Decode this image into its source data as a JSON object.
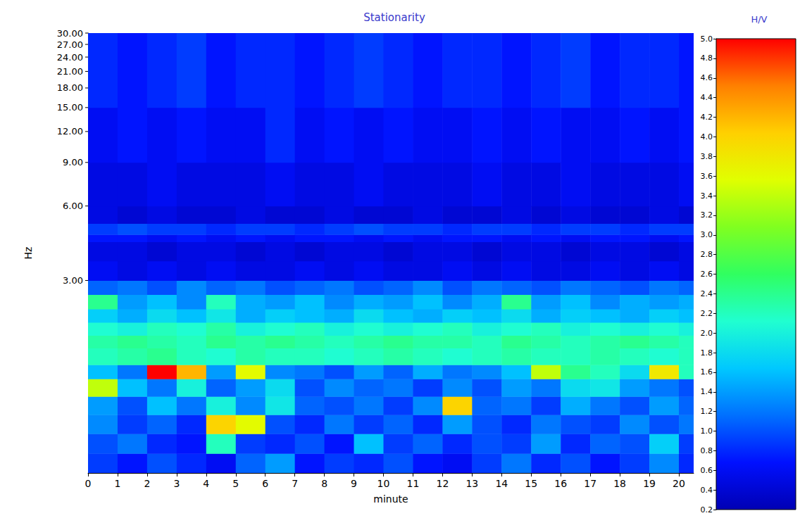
{
  "chart_data": {
    "type": "heatmap",
    "title": "Stationarity",
    "x_label": "minute",
    "y_label": "Hz",
    "log": "y",
    "xlim": [
      0,
      20.5
    ],
    "xticks": [
      0,
      1,
      2,
      3,
      4,
      5,
      6,
      7,
      8,
      9,
      10,
      11,
      12,
      13,
      14,
      15,
      16,
      17,
      18,
      19,
      20
    ],
    "ylim": [
      0.5,
      30
    ],
    "yticks": [
      {
        "value": 3,
        "label": "3.00"
      },
      {
        "value": 6,
        "label": "6.00"
      },
      {
        "value": 9,
        "label": "9.00"
      },
      {
        "value": 12,
        "label": "12.00"
      },
      {
        "value": 15,
        "label": "15.00"
      },
      {
        "value": 18,
        "label": "18.00"
      },
      {
        "value": 21,
        "label": "21.00"
      },
      {
        "value": 24,
        "label": "24.00"
      },
      {
        "value": 27,
        "label": "27.00"
      },
      {
        "value": 30,
        "label": "30.00"
      }
    ],
    "cells": {
      "x_edges": [
        0,
        1,
        2,
        3,
        4,
        5,
        6,
        7,
        8,
        9,
        10,
        11,
        12,
        13,
        14,
        15,
        16,
        17,
        18,
        19,
        20,
        20.5
      ],
      "y_edges": [
        0.5,
        0.6,
        0.72,
        0.86,
        1.02,
        1.2,
        1.37,
        1.6,
        1.8,
        2.03,
        2.3,
        2.63,
        3.0,
        3.6,
        4.3,
        4.6,
        5.1,
        6.0,
        9.0,
        15.0,
        30.0
      ],
      "values": [
        [
          0.9,
          0.7,
          1.0,
          0.8,
          0.6,
          1.1,
          1.4,
          0.7,
          0.9,
          0.8,
          1.0,
          0.7,
          0.6,
          0.9,
          1.2,
          0.8,
          1.0,
          0.7,
          0.9,
          1.3,
          0.8
        ],
        [
          1.0,
          1.2,
          0.8,
          0.7,
          2.2,
          0.9,
          0.8,
          1.0,
          0.7,
          1.6,
          0.9,
          1.1,
          0.8,
          1.0,
          0.9,
          1.4,
          0.8,
          1.1,
          1.0,
          1.7,
          0.9
        ],
        [
          1.3,
          0.9,
          1.1,
          0.8,
          4.0,
          3.6,
          1.0,
          0.8,
          1.2,
          0.9,
          1.1,
          0.8,
          1.4,
          1.0,
          0.8,
          1.2,
          1.0,
          0.9,
          1.3,
          1.0,
          1.2
        ],
        [
          1.4,
          1.0,
          1.6,
          1.2,
          2.0,
          1.3,
          1.9,
          1.1,
          1.0,
          1.2,
          0.9,
          1.3,
          4.0,
          1.1,
          1.2,
          0.9,
          1.5,
          1.2,
          1.0,
          1.4,
          1.1
        ],
        [
          3.4,
          1.6,
          1.2,
          2.0,
          1.1,
          1.4,
          1.8,
          1.0,
          1.3,
          1.1,
          1.2,
          0.9,
          1.3,
          1.0,
          1.4,
          1.2,
          1.8,
          1.9,
          1.4,
          1.2,
          1.0
        ],
        [
          1.6,
          1.2,
          5.0,
          4.2,
          1.4,
          3.6,
          1.3,
          1.2,
          1.0,
          1.4,
          1.1,
          1.5,
          1.2,
          1.3,
          1.6,
          3.4,
          2.4,
          2.2,
          1.8,
          3.8,
          2.2
        ],
        [
          2.2,
          2.3,
          2.4,
          2.2,
          2.1,
          2.3,
          2.2,
          2.2,
          2.1,
          2.2,
          2.3,
          2.2,
          2.1,
          2.2,
          2.3,
          2.2,
          2.2,
          2.3,
          2.2,
          2.1,
          2.2
        ],
        [
          2.3,
          2.4,
          2.3,
          2.2,
          2.4,
          2.3,
          2.4,
          2.3,
          2.2,
          2.3,
          2.4,
          2.3,
          2.3,
          2.2,
          2.4,
          2.3,
          2.2,
          2.3,
          2.4,
          2.3,
          2.2
        ],
        [
          2.1,
          2.0,
          2.2,
          2.1,
          2.3,
          2.0,
          2.1,
          2.2,
          2.0,
          2.1,
          2.0,
          2.1,
          2.2,
          2.0,
          2.1,
          2.2,
          2.0,
          2.1,
          2.0,
          2.1,
          2.0
        ],
        [
          1.7,
          1.5,
          1.8,
          1.6,
          1.9,
          1.5,
          1.7,
          1.6,
          1.5,
          1.8,
          1.6,
          1.5,
          1.7,
          1.6,
          1.8,
          1.5,
          1.7,
          1.6,
          1.5,
          1.7,
          1.6
        ],
        [
          2.4,
          1.4,
          1.6,
          1.3,
          2.2,
          1.5,
          1.4,
          1.6,
          1.3,
          1.5,
          1.4,
          1.6,
          1.3,
          1.5,
          2.4,
          1.4,
          1.6,
          1.3,
          1.5,
          1.4,
          1.5
        ],
        [
          1.1,
          1.2,
          1.0,
          1.3,
          1.1,
          1.2,
          1.0,
          1.1,
          1.2,
          1.0,
          1.1,
          1.3,
          1.0,
          1.2,
          1.1,
          1.0,
          1.2,
          1.1,
          1.0,
          1.2,
          1.1
        ],
        [
          0.6,
          0.5,
          0.6,
          0.5,
          0.6,
          0.5,
          0.5,
          0.6,
          0.5,
          0.6,
          0.5,
          0.5,
          0.6,
          0.5,
          0.6,
          0.5,
          0.5,
          0.6,
          0.5,
          0.6,
          0.5
        ],
        [
          0.5,
          0.5,
          0.4,
          0.5,
          0.5,
          0.4,
          0.5,
          0.4,
          0.5,
          0.5,
          0.4,
          0.5,
          0.5,
          0.4,
          0.5,
          0.5,
          0.4,
          0.5,
          0.5,
          0.4,
          0.5
        ],
        [
          0.7,
          0.7,
          0.6,
          0.7,
          0.6,
          0.7,
          0.6,
          0.7,
          0.7,
          0.6,
          0.7,
          0.6,
          0.7,
          0.7,
          0.6,
          0.7,
          0.6,
          0.7,
          0.7,
          0.6,
          0.7
        ],
        [
          0.9,
          1.0,
          0.9,
          0.9,
          0.8,
          0.9,
          0.9,
          0.8,
          0.9,
          1.0,
          0.9,
          0.9,
          0.8,
          0.9,
          0.9,
          0.8,
          0.9,
          0.9,
          0.8,
          0.9,
          0.9
        ],
        [
          0.5,
          0.4,
          0.5,
          0.4,
          0.4,
          0.5,
          0.4,
          0.4,
          0.5,
          0.4,
          0.4,
          0.5,
          0.4,
          0.4,
          0.5,
          0.4,
          0.5,
          0.4,
          0.4,
          0.5,
          0.4
        ],
        [
          0.5,
          0.5,
          0.6,
          0.5,
          0.5,
          0.5,
          0.6,
          0.5,
          0.5,
          0.6,
          0.5,
          0.5,
          0.5,
          0.6,
          0.5,
          0.5,
          0.6,
          0.5,
          0.5,
          0.5,
          0.6
        ],
        [
          0.6,
          0.7,
          0.6,
          0.7,
          0.6,
          0.6,
          0.8,
          0.6,
          0.7,
          0.6,
          0.7,
          0.6,
          0.6,
          0.7,
          0.6,
          0.7,
          0.6,
          0.6,
          0.7,
          0.6,
          0.7
        ],
        [
          0.8,
          0.7,
          0.8,
          0.9,
          0.7,
          0.8,
          0.8,
          0.7,
          0.8,
          0.9,
          0.8,
          0.7,
          0.8,
          0.8,
          0.7,
          0.8,
          0.9,
          0.7,
          0.8,
          0.8,
          0.7
        ]
      ]
    },
    "colorbar": {
      "label": "H/V",
      "range": [
        0.2,
        5.0
      ],
      "ticks": [
        0.2,
        0.4,
        0.6,
        0.8,
        {
          "value": 1.0,
          "label": "1.0"
        },
        1.2,
        1.4,
        1.6,
        1.8,
        {
          "value": 2.0,
          "label": "2.0"
        },
        2.2,
        2.4,
        2.6,
        2.8,
        {
          "value": 3.0,
          "label": "3.0"
        },
        3.2,
        3.4,
        3.6,
        3.8,
        {
          "value": 4.0,
          "label": "4.0"
        },
        4.2,
        4.4,
        4.6,
        4.8,
        {
          "value": 5.0,
          "label": "5.0"
        }
      ]
    }
  }
}
